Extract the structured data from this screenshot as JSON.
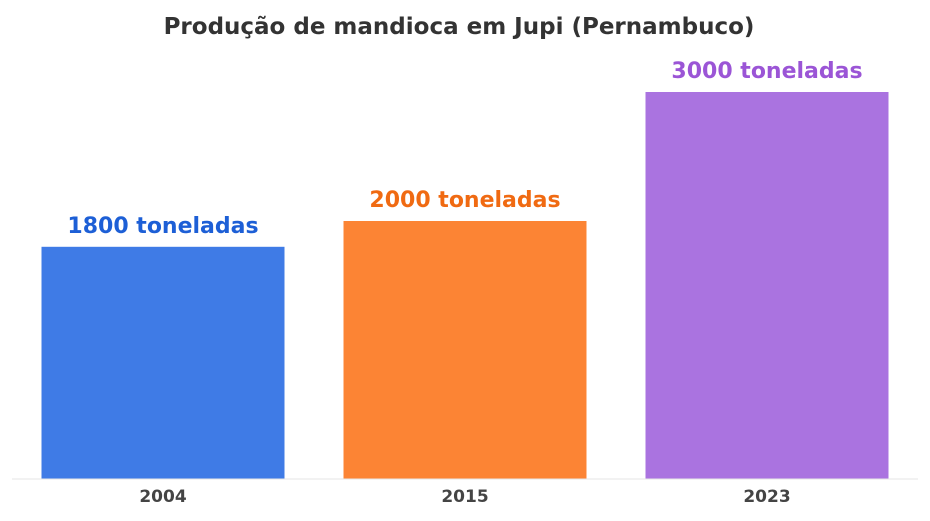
{
  "chart_data": {
    "type": "bar",
    "title": "Produção de mandioca em Jupi (Pernambuco)",
    "xlabel": "",
    "ylabel": "",
    "ylim": [
      0,
      3000
    ],
    "grid": false,
    "legend": "none",
    "unit": "toneladas",
    "categories": [
      "2004",
      "2015",
      "2023"
    ],
    "values": [
      1800,
      2000,
      3000
    ],
    "data_labels": [
      "1800 toneladas",
      "2000 toneladas",
      "3000 toneladas"
    ],
    "bar_colors": [
      "#3f7be6",
      "#fc8434",
      "#aa73e0"
    ],
    "label_colors": [
      "#1d5fd6",
      "#f06a12",
      "#9b55d6"
    ],
    "baseline_color": "#e6e6e6"
  }
}
